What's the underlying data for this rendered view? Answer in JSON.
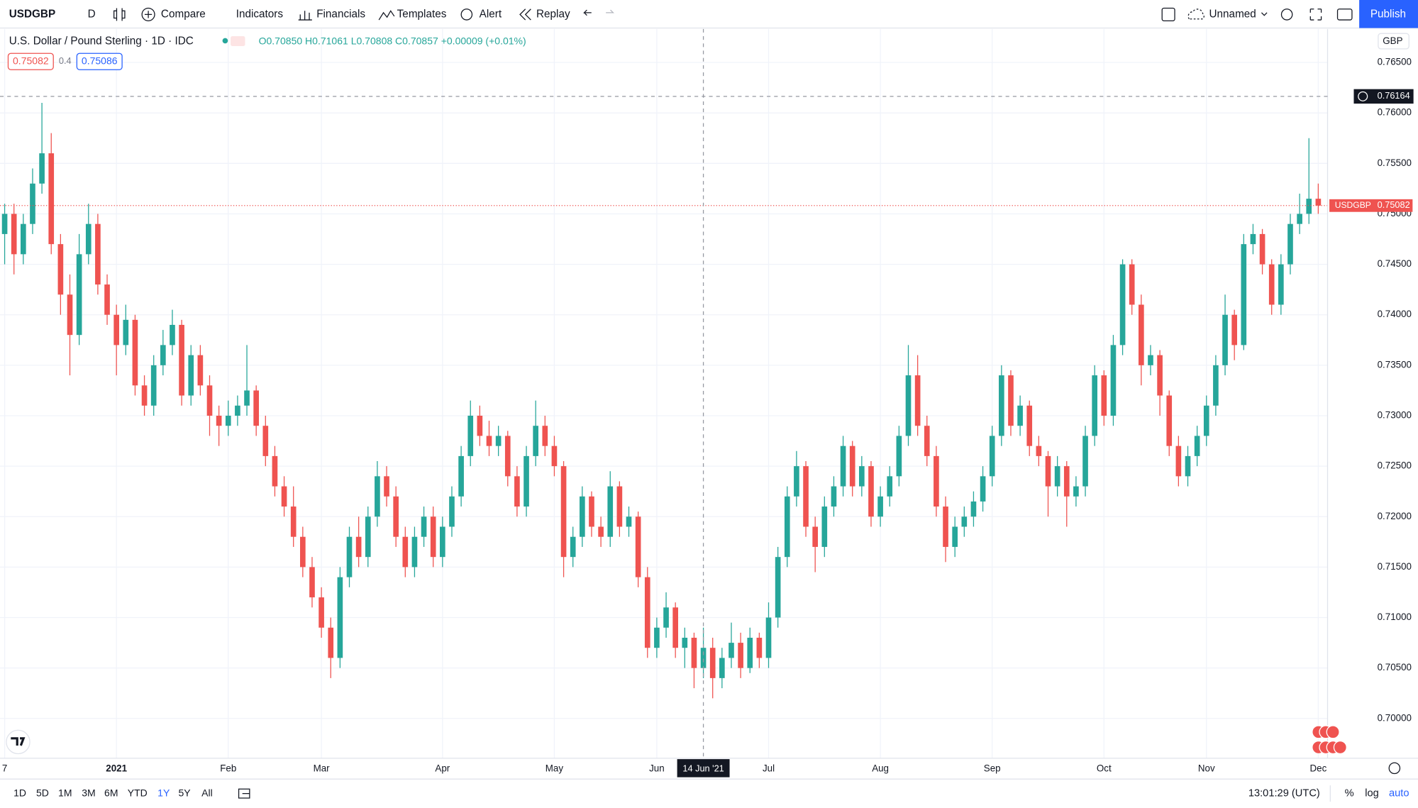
{
  "toolbar": {
    "symbol": "USDGBP",
    "interval": "D",
    "buttons": [
      "Compare",
      "Indicators",
      "Financials",
      "Templates",
      "Alert",
      "Replay"
    ],
    "layout": "Unnamed",
    "publish": "Publish"
  },
  "legend": {
    "title": "U.S. Dollar / Pound Sterling · 1D · IDC",
    "ohlc": "O0.70850 H0.71061 L0.70808 C0.70857 +0.00009 (+0.01%)",
    "bid": "0.75082",
    "spread": "0.4",
    "ask": "0.75086"
  },
  "currency": "GBP",
  "chart_data": {
    "type": "candlestick",
    "up_color": "#26a69a",
    "down_color": "#ef5350",
    "grid": true,
    "series": [
      {
        "name": "USDGBP",
        "values": [
          [
            0.748,
            0.751,
            0.745,
            0.75
          ],
          [
            0.75,
            0.751,
            0.744,
            0.746
          ],
          [
            0.746,
            0.75,
            0.745,
            0.749
          ],
          [
            0.749,
            0.7545,
            0.748,
            0.753
          ],
          [
            0.753,
            0.761,
            0.752,
            0.756
          ],
          [
            0.756,
            0.758,
            0.746,
            0.747
          ],
          [
            0.747,
            0.748,
            0.74,
            0.742
          ],
          [
            0.742,
            0.744,
            0.734,
            0.738
          ],
          [
            0.738,
            0.748,
            0.737,
            0.746
          ],
          [
            0.746,
            0.751,
            0.745,
            0.749
          ],
          [
            0.749,
            0.75,
            0.742,
            0.743
          ],
          [
            0.743,
            0.744,
            0.739,
            0.74
          ],
          [
            0.74,
            0.741,
            0.734,
            0.737
          ],
          [
            0.737,
            0.741,
            0.736,
            0.7395
          ],
          [
            0.7395,
            0.74,
            0.732,
            0.733
          ],
          [
            0.733,
            0.734,
            0.73,
            0.731
          ],
          [
            0.731,
            0.736,
            0.73,
            0.735
          ],
          [
            0.735,
            0.7385,
            0.734,
            0.737
          ],
          [
            0.737,
            0.7405,
            0.736,
            0.739
          ],
          [
            0.739,
            0.7395,
            0.731,
            0.732
          ],
          [
            0.732,
            0.737,
            0.731,
            0.736
          ],
          [
            0.736,
            0.737,
            0.732,
            0.733
          ],
          [
            0.733,
            0.734,
            0.728,
            0.73
          ],
          [
            0.73,
            0.731,
            0.727,
            0.729
          ],
          [
            0.729,
            0.7315,
            0.728,
            0.73
          ],
          [
            0.73,
            0.732,
            0.729,
            0.731
          ],
          [
            0.731,
            0.737,
            0.73,
            0.7325
          ],
          [
            0.7325,
            0.733,
            0.728,
            0.729
          ],
          [
            0.729,
            0.73,
            0.725,
            0.726
          ],
          [
            0.726,
            0.727,
            0.722,
            0.723
          ],
          [
            0.723,
            0.724,
            0.72,
            0.721
          ],
          [
            0.721,
            0.723,
            0.717,
            0.718
          ],
          [
            0.718,
            0.719,
            0.714,
            0.715
          ],
          [
            0.715,
            0.716,
            0.711,
            0.712
          ],
          [
            0.712,
            0.713,
            0.708,
            0.709
          ],
          [
            0.709,
            0.71,
            0.704,
            0.706
          ],
          [
            0.706,
            0.715,
            0.705,
            0.714
          ],
          [
            0.714,
            0.719,
            0.713,
            0.718
          ],
          [
            0.718,
            0.72,
            0.715,
            0.716
          ],
          [
            0.716,
            0.721,
            0.715,
            0.72
          ],
          [
            0.72,
            0.7255,
            0.719,
            0.724
          ],
          [
            0.724,
            0.725,
            0.721,
            0.722
          ],
          [
            0.722,
            0.723,
            0.717,
            0.718
          ],
          [
            0.718,
            0.719,
            0.714,
            0.715
          ],
          [
            0.715,
            0.719,
            0.714,
            0.718
          ],
          [
            0.718,
            0.721,
            0.717,
            0.72
          ],
          [
            0.72,
            0.721,
            0.715,
            0.716
          ],
          [
            0.716,
            0.72,
            0.715,
            0.719
          ],
          [
            0.719,
            0.723,
            0.718,
            0.722
          ],
          [
            0.722,
            0.727,
            0.721,
            0.726
          ],
          [
            0.726,
            0.7315,
            0.725,
            0.73
          ],
          [
            0.73,
            0.731,
            0.727,
            0.728
          ],
          [
            0.728,
            0.7295,
            0.726,
            0.727
          ],
          [
            0.727,
            0.729,
            0.726,
            0.728
          ],
          [
            0.728,
            0.7285,
            0.723,
            0.724
          ],
          [
            0.724,
            0.725,
            0.72,
            0.721
          ],
          [
            0.721,
            0.727,
            0.72,
            0.726
          ],
          [
            0.726,
            0.7315,
            0.725,
            0.729
          ],
          [
            0.729,
            0.73,
            0.726,
            0.727
          ],
          [
            0.727,
            0.728,
            0.724,
            0.725
          ],
          [
            0.725,
            0.7255,
            0.714,
            0.716
          ],
          [
            0.716,
            0.719,
            0.715,
            0.718
          ],
          [
            0.718,
            0.723,
            0.717,
            0.722
          ],
          [
            0.722,
            0.7225,
            0.718,
            0.719
          ],
          [
            0.719,
            0.72,
            0.717,
            0.718
          ],
          [
            0.718,
            0.7245,
            0.717,
            0.723
          ],
          [
            0.723,
            0.7235,
            0.718,
            0.719
          ],
          [
            0.719,
            0.721,
            0.718,
            0.72
          ],
          [
            0.72,
            0.7205,
            0.713,
            0.714
          ],
          [
            0.714,
            0.715,
            0.706,
            0.707
          ],
          [
            0.707,
            0.71,
            0.706,
            0.709
          ],
          [
            0.709,
            0.7125,
            0.708,
            0.711
          ],
          [
            0.711,
            0.7115,
            0.706,
            0.707
          ],
          [
            0.707,
            0.709,
            0.705,
            0.708
          ],
          [
            0.708,
            0.7085,
            0.703,
            0.705
          ],
          [
            0.705,
            0.709,
            0.704,
            0.707
          ],
          [
            0.707,
            0.708,
            0.702,
            0.704
          ],
          [
            0.704,
            0.707,
            0.703,
            0.706
          ],
          [
            0.706,
            0.7095,
            0.705,
            0.7075
          ],
          [
            0.7075,
            0.7085,
            0.704,
            0.705
          ],
          [
            0.705,
            0.709,
            0.7045,
            0.708
          ],
          [
            0.708,
            0.7085,
            0.705,
            0.706
          ],
          [
            0.706,
            0.7115,
            0.705,
            0.71
          ],
          [
            0.71,
            0.717,
            0.709,
            0.716
          ],
          [
            0.716,
            0.723,
            0.715,
            0.722
          ],
          [
            0.722,
            0.7265,
            0.721,
            0.725
          ],
          [
            0.725,
            0.7255,
            0.718,
            0.719
          ],
          [
            0.719,
            0.72,
            0.7145,
            0.717
          ],
          [
            0.717,
            0.722,
            0.716,
            0.721
          ],
          [
            0.721,
            0.724,
            0.72,
            0.723
          ],
          [
            0.723,
            0.728,
            0.722,
            0.727
          ],
          [
            0.727,
            0.7275,
            0.722,
            0.723
          ],
          [
            0.723,
            0.726,
            0.722,
            0.725
          ],
          [
            0.725,
            0.7255,
            0.719,
            0.72
          ],
          [
            0.72,
            0.723,
            0.719,
            0.722
          ],
          [
            0.722,
            0.725,
            0.721,
            0.724
          ],
          [
            0.724,
            0.729,
            0.723,
            0.728
          ],
          [
            0.728,
            0.737,
            0.727,
            0.734
          ],
          [
            0.734,
            0.736,
            0.728,
            0.729
          ],
          [
            0.729,
            0.73,
            0.725,
            0.726
          ],
          [
            0.726,
            0.727,
            0.72,
            0.721
          ],
          [
            0.721,
            0.722,
            0.7155,
            0.717
          ],
          [
            0.717,
            0.72,
            0.716,
            0.719
          ],
          [
            0.719,
            0.721,
            0.718,
            0.72
          ],
          [
            0.72,
            0.7225,
            0.719,
            0.7215
          ],
          [
            0.7215,
            0.725,
            0.7205,
            0.724
          ],
          [
            0.724,
            0.729,
            0.723,
            0.728
          ],
          [
            0.728,
            0.735,
            0.727,
            0.734
          ],
          [
            0.734,
            0.7345,
            0.728,
            0.729
          ],
          [
            0.729,
            0.732,
            0.728,
            0.731
          ],
          [
            0.731,
            0.7315,
            0.726,
            0.727
          ],
          [
            0.727,
            0.728,
            0.725,
            0.726
          ],
          [
            0.726,
            0.7265,
            0.72,
            0.723
          ],
          [
            0.723,
            0.726,
            0.722,
            0.725
          ],
          [
            0.725,
            0.7255,
            0.719,
            0.722
          ],
          [
            0.722,
            0.724,
            0.721,
            0.723
          ],
          [
            0.723,
            0.729,
            0.722,
            0.728
          ],
          [
            0.728,
            0.735,
            0.727,
            0.734
          ],
          [
            0.734,
            0.7345,
            0.729,
            0.73
          ],
          [
            0.73,
            0.738,
            0.729,
            0.737
          ],
          [
            0.737,
            0.7455,
            0.736,
            0.745
          ],
          [
            0.745,
            0.7455,
            0.74,
            0.741
          ],
          [
            0.741,
            0.742,
            0.733,
            0.735
          ],
          [
            0.735,
            0.737,
            0.734,
            0.736
          ],
          [
            0.736,
            0.7365,
            0.73,
            0.732
          ],
          [
            0.732,
            0.7325,
            0.726,
            0.727
          ],
          [
            0.727,
            0.728,
            0.723,
            0.724
          ],
          [
            0.724,
            0.727,
            0.723,
            0.726
          ],
          [
            0.726,
            0.729,
            0.725,
            0.728
          ],
          [
            0.728,
            0.732,
            0.727,
            0.731
          ],
          [
            0.731,
            0.736,
            0.73,
            0.735
          ],
          [
            0.735,
            0.742,
            0.734,
            0.74
          ],
          [
            0.74,
            0.7405,
            0.7355,
            0.737
          ],
          [
            0.737,
            0.748,
            0.7365,
            0.747
          ],
          [
            0.747,
            0.749,
            0.746,
            0.748
          ],
          [
            0.748,
            0.7485,
            0.744,
            0.745
          ],
          [
            0.745,
            0.7455,
            0.74,
            0.741
          ],
          [
            0.741,
            0.746,
            0.74,
            0.745
          ],
          [
            0.745,
            0.75,
            0.744,
            0.749
          ],
          [
            0.749,
            0.752,
            0.748,
            0.75
          ],
          [
            0.75,
            0.7575,
            0.749,
            0.7515
          ],
          [
            0.7515,
            0.753,
            0.75,
            0.75082
          ]
        ]
      }
    ],
    "last_label": "0.75082",
    "ylim": [
      0.69606,
      0.76832
    ],
    "yticks": [
      {
        "value": 0.7,
        "label": "0.70000"
      },
      {
        "value": 0.705,
        "label": "0.70500"
      },
      {
        "value": 0.71,
        "label": "0.71000"
      },
      {
        "value": 0.715,
        "label": "0.71500"
      },
      {
        "value": 0.72,
        "label": "0.72000"
      },
      {
        "value": 0.725,
        "label": "0.72500"
      },
      {
        "value": 0.73,
        "label": "0.73000"
      },
      {
        "value": 0.735,
        "label": "0.73500"
      },
      {
        "value": 0.74,
        "label": "0.74000"
      },
      {
        "value": 0.745,
        "label": "0.74500"
      },
      {
        "value": 0.75,
        "label": "0.75000"
      },
      {
        "value": 0.755,
        "label": "0.75500"
      },
      {
        "value": 0.76,
        "label": "0.76000"
      },
      {
        "value": 0.765,
        "label": "0.76500"
      }
    ],
    "xlim": [
      -0.5,
      142
    ],
    "xticks": [
      {
        "value": 0,
        "label": "7"
      },
      {
        "value": 12,
        "label": "2021"
      },
      {
        "value": 24,
        "label": "Feb"
      },
      {
        "value": 34,
        "label": "Mar"
      },
      {
        "value": 47,
        "label": "Apr"
      },
      {
        "value": 59,
        "label": "May"
      },
      {
        "value": 70,
        "label": "Jun"
      },
      {
        "value": 82,
        "label": "Jul"
      },
      {
        "value": 94,
        "label": "Aug"
      },
      {
        "value": 106,
        "label": "Sep"
      },
      {
        "value": 118,
        "label": "Oct"
      },
      {
        "value": 129,
        "label": "Nov"
      },
      {
        "value": 141,
        "label": "Dec"
      }
    ],
    "crosshair": {
      "price": {
        "value": 0.76164,
        "label": "0.76164"
      },
      "x": 75,
      "date_label": "14 Jun '21"
    }
  },
  "ranges": [
    "1D",
    "5D",
    "1M",
    "3M",
    "6M",
    "YTD",
    "1Y",
    "5Y",
    "All"
  ],
  "selected_range": 6,
  "clock": "13:01:29 (UTC)",
  "scale_buttons": [
    "%",
    "log",
    "auto"
  ]
}
